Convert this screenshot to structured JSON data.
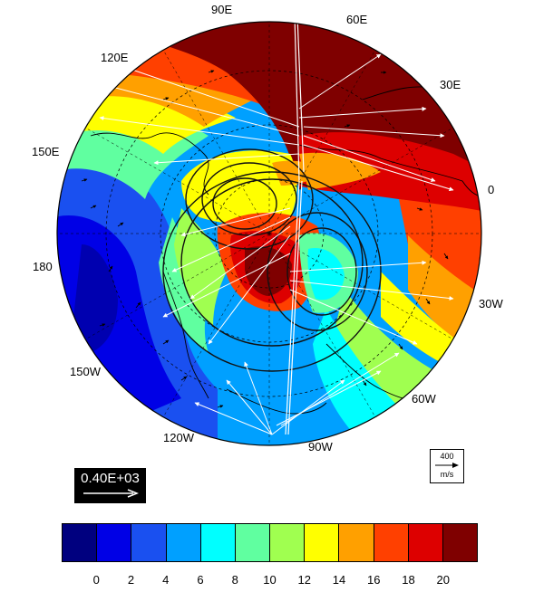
{
  "map": {
    "lon_labels": {
      "e90": "90E",
      "e60": "60E",
      "e120": "120E",
      "e30": "30E",
      "e150": "150E",
      "e0": "0",
      "w180": "180",
      "w30": "30W",
      "w150": "150W",
      "w60": "60W",
      "w120": "120W",
      "w90": "90W"
    }
  },
  "reference_vector": {
    "value": "400",
    "unit": "m/s"
  },
  "scale_vector": {
    "label": "0.40E+03"
  },
  "colorbar": {
    "tick_labels": [
      "0",
      "2",
      "4",
      "6",
      "8",
      "10",
      "12",
      "14",
      "16",
      "18",
      "20"
    ],
    "colors": [
      "#00007f",
      "#0000e6",
      "#1a50f0",
      "#00a0ff",
      "#00ffff",
      "#60ffa0",
      "#a0ff50",
      "#ffff00",
      "#ffa000",
      "#ff4000",
      "#dd0000",
      "#7f0000"
    ]
  }
}
